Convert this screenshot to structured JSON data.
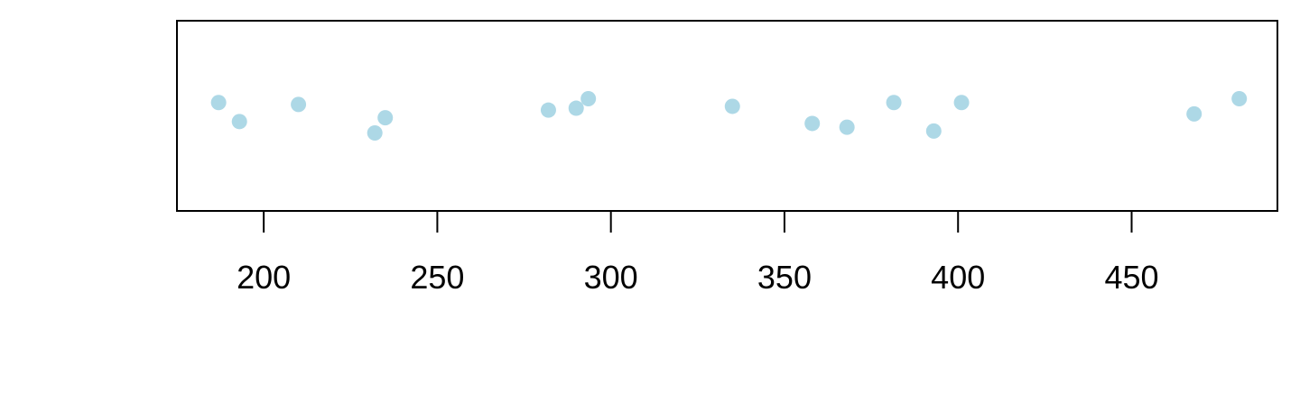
{
  "chart_data": {
    "type": "scatter",
    "title": "",
    "xlabel": "",
    "ylabel": "",
    "xlim": [
      175,
      492
    ],
    "ylim": [
      0,
      1
    ],
    "x_ticks": [
      200,
      250,
      300,
      350,
      400,
      450
    ],
    "x_tick_labels": [
      "200",
      "250",
      "300",
      "350",
      "400",
      "450"
    ],
    "grid": false,
    "point_color": "#ADD8E6",
    "axis_color": "#000000",
    "series": [
      {
        "points": [
          {
            "x": 187,
            "y": 0.57
          },
          {
            "x": 193,
            "y": 0.47
          },
          {
            "x": 210,
            "y": 0.56
          },
          {
            "x": 232,
            "y": 0.41
          },
          {
            "x": 235,
            "y": 0.49
          },
          {
            "x": 282,
            "y": 0.53
          },
          {
            "x": 290,
            "y": 0.54
          },
          {
            "x": 293.5,
            "y": 0.59
          },
          {
            "x": 335,
            "y": 0.55
          },
          {
            "x": 358,
            "y": 0.46
          },
          {
            "x": 368,
            "y": 0.44
          },
          {
            "x": 381.5,
            "y": 0.57
          },
          {
            "x": 393,
            "y": 0.42
          },
          {
            "x": 401,
            "y": 0.57
          },
          {
            "x": 468,
            "y": 0.51
          },
          {
            "x": 481,
            "y": 0.59
          }
        ]
      }
    ]
  }
}
